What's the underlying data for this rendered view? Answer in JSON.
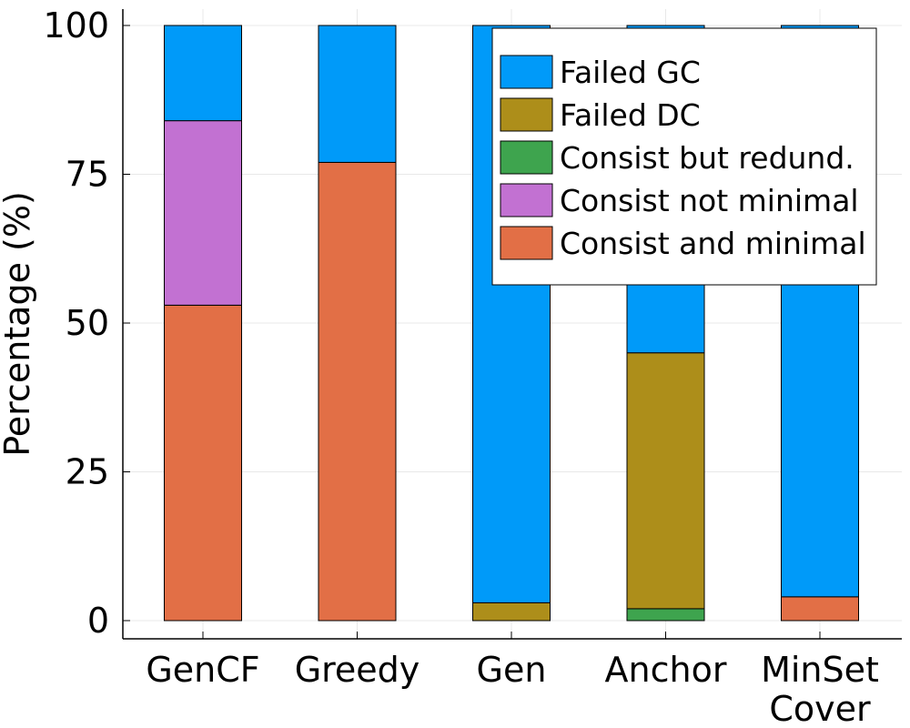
{
  "chart_data": {
    "type": "bar",
    "stacked": true,
    "categories": [
      [
        "GenCF"
      ],
      [
        "Greedy"
      ],
      [
        "Gen"
      ],
      [
        "Anchor"
      ],
      [
        "MinSet",
        "Cover"
      ]
    ],
    "series": [
      {
        "name": "Consist and minimal",
        "color": "#e26f46",
        "values": [
          53,
          77,
          0,
          0,
          4
        ]
      },
      {
        "name": "Consist not minimal",
        "color": "#c271d2",
        "values": [
          31,
          0,
          0,
          0,
          0
        ]
      },
      {
        "name": "Consist but redund.",
        "color": "#3ea44e",
        "values": [
          0,
          0,
          0,
          2,
          0
        ]
      },
      {
        "name": "Failed DC",
        "color": "#ad8e1a",
        "values": [
          0,
          0,
          3,
          43,
          0
        ]
      },
      {
        "name": "Failed GC",
        "color": "#009af9",
        "values": [
          16,
          23,
          97,
          55,
          96
        ]
      }
    ],
    "legend_order": [
      "Failed GC",
      "Failed DC",
      "Consist but redund.",
      "Consist not minimal",
      "Consist and minimal"
    ],
    "legend_position": "top-right",
    "ylabel": "Percentage (%)",
    "xlabel": "",
    "ylim": [
      0,
      100
    ],
    "yticks": [
      0,
      25,
      50,
      75,
      100
    ],
    "grid": true
  }
}
